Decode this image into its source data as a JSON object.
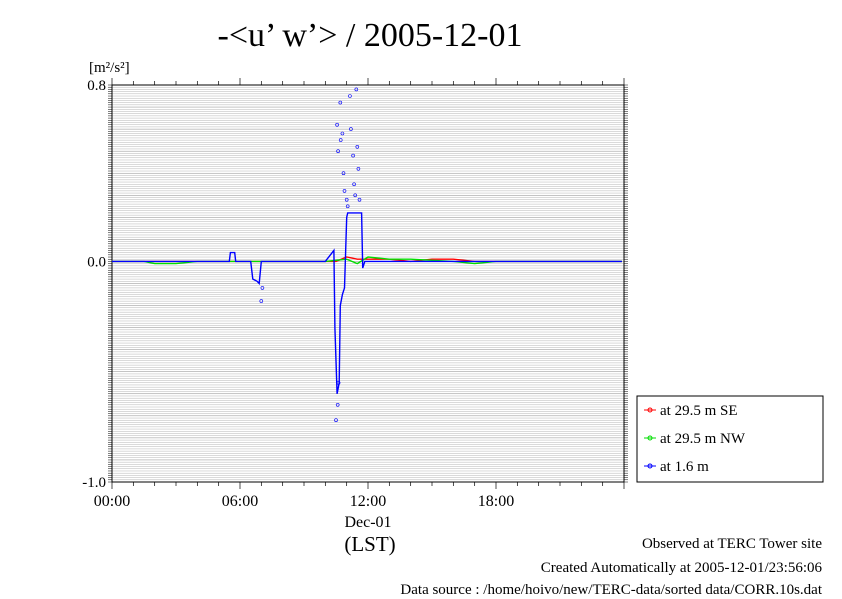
{
  "chart_data": {
    "type": "line",
    "title": "-<u’ w’> / 2005-12-01",
    "unit_label": "[m²/s²]",
    "xlabel": "(LST)",
    "date_label": "Dec-01",
    "x_unit": "hours (LST)",
    "xlim": [
      0,
      24
    ],
    "ylim": [
      -1.0,
      0.8
    ],
    "x_ticks": [
      {
        "value": 0,
        "label": "00:00"
      },
      {
        "value": 6,
        "label": "06:00"
      },
      {
        "value": 12,
        "label": "12:00"
      },
      {
        "value": 18,
        "label": "18:00"
      }
    ],
    "y_ticks": [
      {
        "value": 0.8,
        "label": "0.8"
      },
      {
        "value": 0.0,
        "label": "0.0"
      },
      {
        "value": -1.0,
        "label": "-1.0"
      }
    ],
    "y_minor_step": 0.01,
    "grid": true,
    "legend_position": "right",
    "series": [
      {
        "name": "at 29.5 m SE",
        "color": "#ff0000",
        "x": [
          0,
          2,
          4,
          6,
          8,
          10,
          10.5,
          11,
          11.5,
          12,
          13,
          14,
          15,
          16,
          17,
          18,
          20,
          22,
          23.9
        ],
        "y": [
          0.0,
          0.0,
          0.0,
          0.0,
          0.0,
          0.0,
          0.0,
          0.02,
          0.01,
          0.01,
          0.01,
          0.0,
          0.01,
          0.01,
          0.0,
          0.0,
          0.0,
          0.0,
          0.0
        ]
      },
      {
        "name": "at 29.5 m NW",
        "color": "#00dd00",
        "x": [
          0,
          1.5,
          2,
          3,
          4,
          6,
          8,
          10,
          11,
          11.5,
          12,
          13,
          14,
          16,
          17,
          18,
          20,
          22,
          23.9
        ],
        "y": [
          0.0,
          0.0,
          -0.01,
          -0.01,
          0.0,
          0.0,
          0.0,
          0.0,
          0.01,
          -0.01,
          0.02,
          0.01,
          0.01,
          0.0,
          -0.01,
          0.0,
          0.0,
          0.0,
          0.0
        ]
      },
      {
        "name": "at 1.6 m",
        "color": "#0000ff",
        "x": [
          0,
          1.5,
          3,
          3.5,
          5.5,
          5.55,
          5.75,
          5.8,
          6.5,
          6.6,
          6.8,
          6.9,
          7.0,
          8,
          10,
          10.4,
          10.45,
          10.55,
          10.65,
          10.7,
          10.8,
          10.9,
          11.0,
          11.05,
          11.2,
          11.7,
          11.75,
          11.85,
          12,
          13,
          14,
          16,
          18,
          20,
          22,
          23.9
        ],
        "y": [
          0.0,
          0.0,
          0.0,
          0.0,
          0.0,
          0.04,
          0.04,
          0.0,
          0.0,
          -0.08,
          -0.09,
          -0.1,
          0.0,
          0.0,
          0.0,
          0.05,
          -0.3,
          -0.6,
          -0.55,
          -0.2,
          -0.15,
          -0.12,
          0.2,
          0.22,
          0.22,
          0.22,
          -0.03,
          0.0,
          0.0,
          0.0,
          0.0,
          0.0,
          0.0,
          0.0,
          0.0,
          0.0
        ]
      }
    ],
    "scatter_markers": [
      {
        "color": "#0000ff",
        "x": [
          10.55,
          10.6,
          10.7,
          10.72,
          10.8,
          10.85,
          10.9,
          11.0,
          11.05,
          11.15,
          11.2,
          11.3,
          11.35,
          11.4,
          11.45,
          11.5,
          11.55,
          11.6,
          10.5,
          10.58,
          10.62,
          7.0,
          7.05
        ],
        "y": [
          0.62,
          0.5,
          0.72,
          0.55,
          0.58,
          0.4,
          0.32,
          0.28,
          0.25,
          0.75,
          0.6,
          0.48,
          0.35,
          0.3,
          0.78,
          0.52,
          0.42,
          0.28,
          -0.72,
          -0.65,
          -0.55,
          -0.18,
          -0.12
        ]
      }
    ]
  },
  "legend": {
    "items": [
      "at 29.5 m SE",
      "at 29.5 m NW",
      "at 1.6 m"
    ]
  },
  "footer": {
    "site": "Observed at TERC Tower site",
    "created": "Created Automatically at 2005-12-01/23:56:06",
    "source": "Data source : /home/hoivo/new/TERC-data/sorted  data/CORR.10s.dat"
  }
}
